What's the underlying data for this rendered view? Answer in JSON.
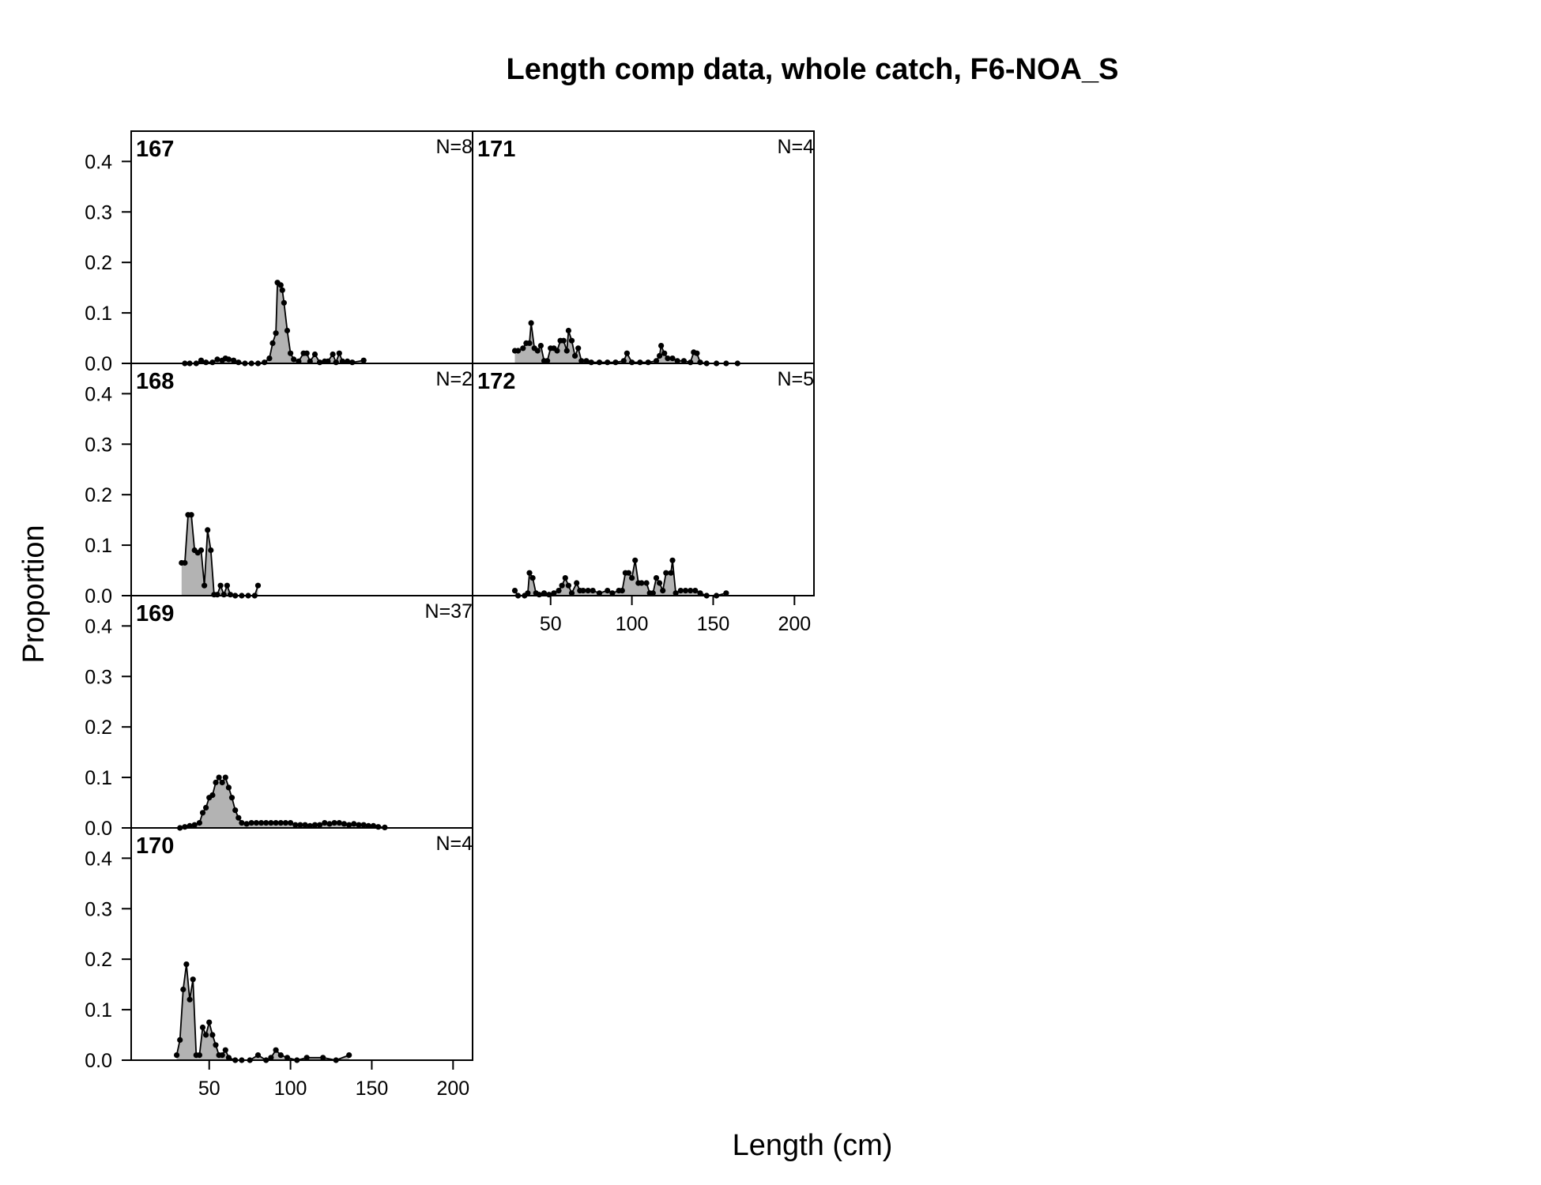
{
  "chart_data": {
    "type": "area",
    "title": "Length comp data, whole catch, F6-NOA_S",
    "xlabel": "Length (cm)",
    "ylabel": "Proportion",
    "xlim": [
      2,
      212
    ],
    "ylim": [
      0,
      0.46
    ],
    "x_ticks": [
      50,
      100,
      150,
      200
    ],
    "y_ticks": [
      0.0,
      0.1,
      0.2,
      0.3,
      0.4
    ],
    "grid": false,
    "series_color": "#b3b3b3",
    "line_color": "#000000",
    "panels": [
      {
        "name": "167",
        "n_label": "N=8",
        "points": [
          [
            35,
            0
          ],
          [
            38,
            0
          ],
          [
            42,
            0
          ],
          [
            45,
            0.006
          ],
          [
            48,
            0.002
          ],
          [
            52,
            0.002
          ],
          [
            55,
            0.008
          ],
          [
            58,
            0.006
          ],
          [
            60,
            0.01
          ],
          [
            62,
            0.008
          ],
          [
            65,
            0.006
          ],
          [
            68,
            0.002
          ],
          [
            72,
            0
          ],
          [
            76,
            0
          ],
          [
            80,
            0
          ],
          [
            84,
            0.002
          ],
          [
            87,
            0.01
          ],
          [
            89,
            0.04
          ],
          [
            91,
            0.06
          ],
          [
            92,
            0.16
          ],
          [
            94,
            0.155
          ],
          [
            95,
            0.145
          ],
          [
            96,
            0.12
          ],
          [
            98,
            0.065
          ],
          [
            100,
            0.02
          ],
          [
            102,
            0.008
          ],
          [
            105,
            0.004
          ],
          [
            108,
            0.02
          ],
          [
            110,
            0.02
          ],
          [
            112,
            0.004
          ],
          [
            115,
            0.018
          ],
          [
            118,
            0.002
          ],
          [
            121,
            0.004
          ],
          [
            123,
            0.004
          ],
          [
            126,
            0.018
          ],
          [
            128,
            0.002
          ],
          [
            130,
            0.02
          ],
          [
            132,
            0.004
          ],
          [
            135,
            0.004
          ],
          [
            138,
            0.002
          ],
          [
            145,
            0.006
          ]
        ]
      },
      {
        "name": "168",
        "n_label": "N=2",
        "points": [
          [
            33,
            0.065
          ],
          [
            35,
            0.065
          ],
          [
            37,
            0.16
          ],
          [
            39,
            0.16
          ],
          [
            41,
            0.09
          ],
          [
            43,
            0.085
          ],
          [
            45,
            0.09
          ],
          [
            47,
            0.02
          ],
          [
            49,
            0.13
          ],
          [
            51,
            0.09
          ],
          [
            53,
            0.002
          ],
          [
            55,
            0.002
          ],
          [
            57,
            0.02
          ],
          [
            59,
            0.002
          ],
          [
            61,
            0.02
          ],
          [
            63,
            0.002
          ],
          [
            66,
            0
          ],
          [
            70,
            0
          ],
          [
            74,
            0
          ],
          [
            78,
            0
          ],
          [
            80,
            0.02
          ]
        ]
      },
      {
        "name": "169",
        "n_label": "N=37",
        "points": [
          [
            32,
            0
          ],
          [
            35,
            0.002
          ],
          [
            38,
            0.004
          ],
          [
            41,
            0.006
          ],
          [
            44,
            0.01
          ],
          [
            46,
            0.03
          ],
          [
            48,
            0.04
          ],
          [
            50,
            0.06
          ],
          [
            52,
            0.065
          ],
          [
            54,
            0.09
          ],
          [
            56,
            0.1
          ],
          [
            58,
            0.09
          ],
          [
            60,
            0.1
          ],
          [
            62,
            0.08
          ],
          [
            64,
            0.06
          ],
          [
            66,
            0.035
          ],
          [
            68,
            0.02
          ],
          [
            70,
            0.01
          ],
          [
            73,
            0.008
          ],
          [
            76,
            0.01
          ],
          [
            79,
            0.01
          ],
          [
            82,
            0.01
          ],
          [
            85,
            0.01
          ],
          [
            88,
            0.01
          ],
          [
            91,
            0.01
          ],
          [
            94,
            0.01
          ],
          [
            97,
            0.01
          ],
          [
            100,
            0.01
          ],
          [
            103,
            0.006
          ],
          [
            106,
            0.006
          ],
          [
            109,
            0.006
          ],
          [
            112,
            0.004
          ],
          [
            115,
            0.006
          ],
          [
            118,
            0.006
          ],
          [
            121,
            0.01
          ],
          [
            124,
            0.008
          ],
          [
            127,
            0.01
          ],
          [
            130,
            0.01
          ],
          [
            133,
            0.008
          ],
          [
            136,
            0.006
          ],
          [
            139,
            0.008
          ],
          [
            142,
            0.006
          ],
          [
            145,
            0.006
          ],
          [
            148,
            0.004
          ],
          [
            151,
            0.004
          ],
          [
            154,
            0.002
          ],
          [
            158,
            0.001
          ]
        ]
      },
      {
        "name": "170",
        "n_label": "N=4",
        "points": [
          [
            30,
            0.01
          ],
          [
            32,
            0.04
          ],
          [
            34,
            0.14
          ],
          [
            36,
            0.19
          ],
          [
            38,
            0.12
          ],
          [
            40,
            0.16
          ],
          [
            42,
            0.01
          ],
          [
            44,
            0.01
          ],
          [
            46,
            0.065
          ],
          [
            48,
            0.05
          ],
          [
            50,
            0.075
          ],
          [
            52,
            0.05
          ],
          [
            54,
            0.03
          ],
          [
            56,
            0.01
          ],
          [
            58,
            0.01
          ],
          [
            60,
            0.02
          ],
          [
            62,
            0.005
          ],
          [
            66,
            0
          ],
          [
            70,
            0
          ],
          [
            75,
            0
          ],
          [
            80,
            0.01
          ],
          [
            85,
            0
          ],
          [
            88,
            0.005
          ],
          [
            91,
            0.02
          ],
          [
            94,
            0.01
          ],
          [
            98,
            0.005
          ],
          [
            104,
            0
          ],
          [
            110,
            0.005
          ],
          [
            120,
            0.005
          ],
          [
            128,
            0
          ],
          [
            136,
            0.01
          ]
        ]
      },
      {
        "name": "171",
        "n_label": "N=4",
        "points": [
          [
            28,
            0.025
          ],
          [
            30,
            0.025
          ],
          [
            33,
            0.03
          ],
          [
            35,
            0.04
          ],
          [
            37,
            0.04
          ],
          [
            38,
            0.08
          ],
          [
            40,
            0.03
          ],
          [
            42,
            0.025
          ],
          [
            44,
            0.035
          ],
          [
            46,
            0.005
          ],
          [
            48,
            0.005
          ],
          [
            50,
            0.03
          ],
          [
            52,
            0.03
          ],
          [
            54,
            0.025
          ],
          [
            56,
            0.045
          ],
          [
            58,
            0.045
          ],
          [
            60,
            0.025
          ],
          [
            61,
            0.065
          ],
          [
            63,
            0.045
          ],
          [
            65,
            0.015
          ],
          [
            67,
            0.03
          ],
          [
            69,
            0.005
          ],
          [
            72,
            0.005
          ],
          [
            75,
            0.002
          ],
          [
            80,
            0.002
          ],
          [
            85,
            0.002
          ],
          [
            90,
            0.002
          ],
          [
            95,
            0.005
          ],
          [
            97,
            0.02
          ],
          [
            100,
            0.002
          ],
          [
            105,
            0.002
          ],
          [
            110,
            0.002
          ],
          [
            115,
            0.005
          ],
          [
            117,
            0.015
          ],
          [
            118,
            0.035
          ],
          [
            120,
            0.02
          ],
          [
            122,
            0.01
          ],
          [
            125,
            0.01
          ],
          [
            128,
            0.005
          ],
          [
            132,
            0.005
          ],
          [
            136,
            0.002
          ],
          [
            138,
            0.022
          ],
          [
            140,
            0.02
          ],
          [
            142,
            0.002
          ],
          [
            146,
            0
          ],
          [
            152,
            0
          ],
          [
            158,
            0
          ],
          [
            165,
            0
          ]
        ]
      },
      {
        "name": "172",
        "n_label": "N=5",
        "points": [
          [
            28,
            0.01
          ],
          [
            30,
            0
          ],
          [
            34,
            0
          ],
          [
            36,
            0.005
          ],
          [
            37,
            0.045
          ],
          [
            39,
            0.035
          ],
          [
            41,
            0.005
          ],
          [
            43,
            0.002
          ],
          [
            46,
            0.005
          ],
          [
            49,
            0.002
          ],
          [
            52,
            0.005
          ],
          [
            55,
            0.01
          ],
          [
            57,
            0.02
          ],
          [
            59,
            0.035
          ],
          [
            61,
            0.02
          ],
          [
            63,
            0.005
          ],
          [
            66,
            0.025
          ],
          [
            68,
            0.01
          ],
          [
            70,
            0.01
          ],
          [
            73,
            0.01
          ],
          [
            76,
            0.01
          ],
          [
            80,
            0.005
          ],
          [
            85,
            0.01
          ],
          [
            88,
            0.005
          ],
          [
            92,
            0.01
          ],
          [
            94,
            0.01
          ],
          [
            96,
            0.045
          ],
          [
            98,
            0.045
          ],
          [
            100,
            0.035
          ],
          [
            102,
            0.07
          ],
          [
            104,
            0.025
          ],
          [
            106,
            0.025
          ],
          [
            109,
            0.025
          ],
          [
            111,
            0.005
          ],
          [
            113,
            0.005
          ],
          [
            115,
            0.035
          ],
          [
            117,
            0.025
          ],
          [
            119,
            0.01
          ],
          [
            121,
            0.045
          ],
          [
            124,
            0.045
          ],
          [
            125,
            0.07
          ],
          [
            127,
            0.005
          ],
          [
            130,
            0.01
          ],
          [
            133,
            0.01
          ],
          [
            136,
            0.01
          ],
          [
            139,
            0.01
          ],
          [
            142,
            0.005
          ],
          [
            146,
            0
          ],
          [
            152,
            0
          ],
          [
            158,
            0.005
          ]
        ]
      }
    ]
  }
}
